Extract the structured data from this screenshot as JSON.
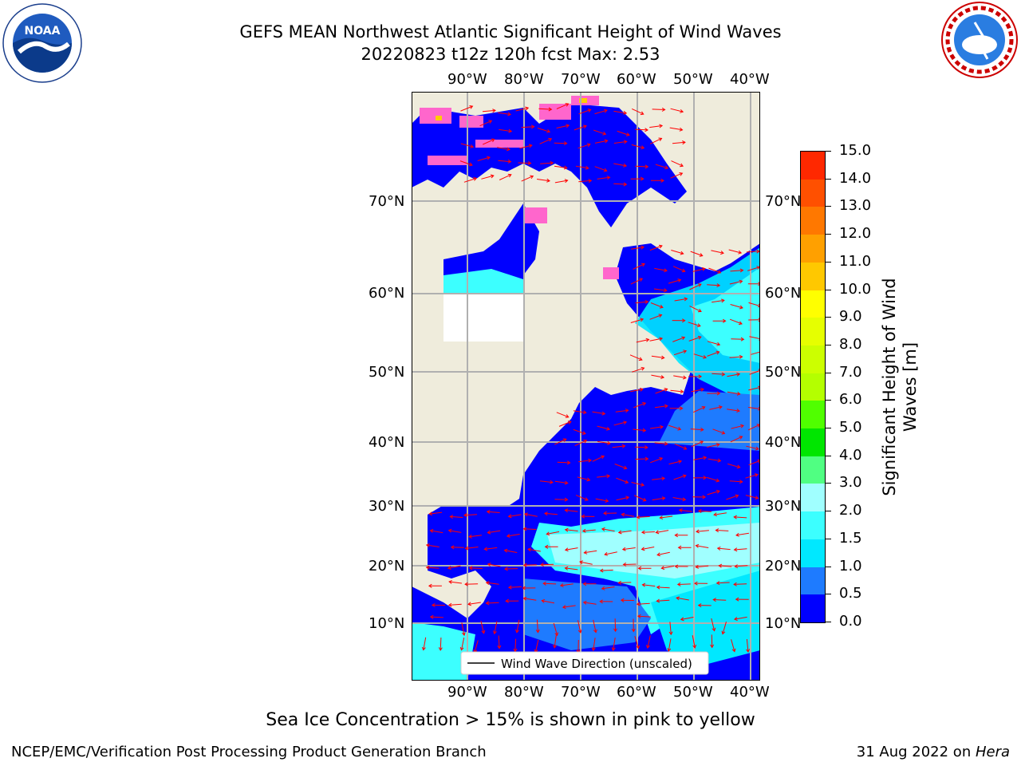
{
  "header": {
    "title_line1": "GEFS MEAN Northwest Atlantic Significant Height of Wind Waves",
    "title_line2": "20220823 t12z 120h fcst   Max: 2.53"
  },
  "logos": {
    "noaa_text": "NOAA",
    "noaa_ring_text": "NATIONAL OCEANIC AND ATMOSPHERIC ADMINISTRATION · U.S. DEPARTMENT OF COMMERCE",
    "nws_ring_text": "NATIONAL WEATHER SERVICE"
  },
  "map": {
    "lon_labels": [
      "90°W",
      "80°W",
      "70°W",
      "60°W",
      "50°W",
      "40°W"
    ],
    "lat_labels": [
      "70°N",
      "60°N",
      "50°N",
      "40°N",
      "30°N",
      "20°N",
      "10°N"
    ],
    "legend_label": "Wind Wave Direction (unscaled)",
    "land_color": "#efecdc",
    "ocean_low_color": "#0000ff",
    "vector_color": "#ff0000"
  },
  "colorbar": {
    "title": "Significant Height of Wind Waves [m]",
    "ticks": [
      "0.0",
      "0.5",
      "1.0",
      "1.5",
      "2.0",
      "3.0",
      "4.0",
      "5.0",
      "6.0",
      "7.0",
      "8.0",
      "9.0",
      "10.0",
      "11.0",
      "12.0",
      "13.0",
      "14.0",
      "15.0"
    ],
    "colors": [
      "#0000ff",
      "#1e7bff",
      "#00e8ff",
      "#3cffff",
      "#a0ffff",
      "#50ff82",
      "#00e600",
      "#50ff00",
      "#b4ff00",
      "#ccff00",
      "#e6ff00",
      "#ffff00",
      "#ffc800",
      "#ffa000",
      "#ff7800",
      "#ff5000",
      "#ff2800"
    ]
  },
  "note": "Sea Ice Concentration > 15% is shown in pink to yellow",
  "footer": {
    "left": "NCEP/EMC/Verification Post Processing Product Generation Branch",
    "right_date": "31 Aug 2022 on ",
    "right_host": "Hera"
  }
}
